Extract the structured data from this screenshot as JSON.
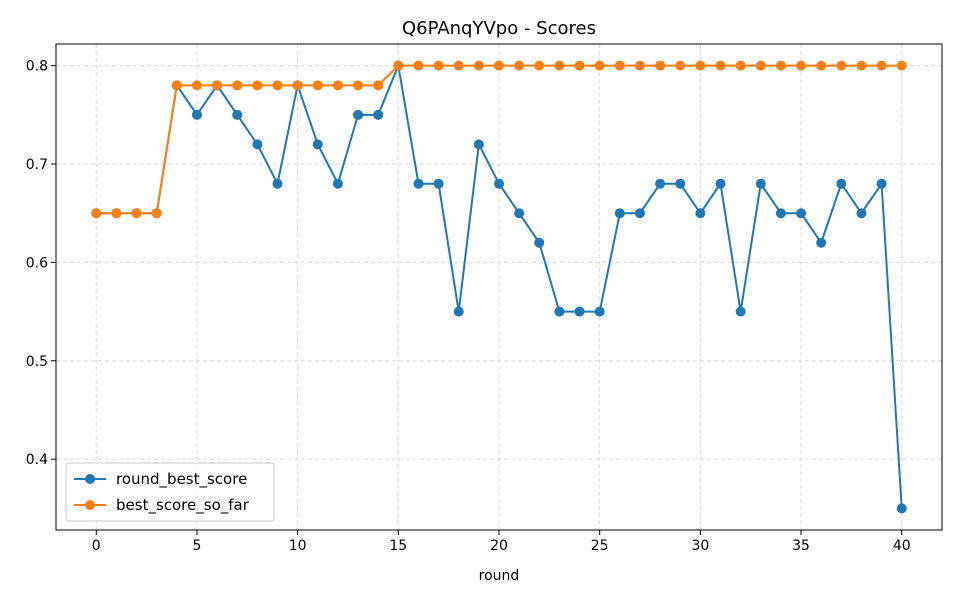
{
  "chart_data": {
    "type": "line",
    "title": "Q6PAnqYVpo - Scores",
    "xlabel": "round",
    "ylabel": "",
    "xlim": [
      -2,
      42
    ],
    "ylim": [
      0.328,
      0.822
    ],
    "xticks": [
      0,
      5,
      10,
      15,
      20,
      25,
      30,
      35,
      40
    ],
    "yticks": [
      0.4,
      0.5,
      0.6,
      0.7,
      0.8
    ],
    "grid": true,
    "legend": "lower-left",
    "x": [
      0,
      1,
      2,
      3,
      4,
      5,
      6,
      7,
      8,
      9,
      10,
      11,
      12,
      13,
      14,
      15,
      16,
      17,
      18,
      19,
      20,
      21,
      22,
      23,
      24,
      25,
      26,
      27,
      28,
      29,
      30,
      31,
      32,
      33,
      34,
      35,
      36,
      37,
      38,
      39,
      40
    ],
    "series": [
      {
        "name": "round_best_score",
        "color": "#1f77b4",
        "values": [
          0.65,
          0.65,
          0.65,
          0.65,
          0.78,
          0.75,
          0.78,
          0.75,
          0.72,
          0.68,
          0.78,
          0.72,
          0.68,
          0.75,
          0.75,
          0.8,
          0.68,
          0.68,
          0.55,
          0.72,
          0.68,
          0.65,
          0.62,
          0.55,
          0.55,
          0.55,
          0.65,
          0.65,
          0.68,
          0.68,
          0.65,
          0.68,
          0.55,
          0.68,
          0.65,
          0.65,
          0.62,
          0.68,
          0.65,
          0.68,
          0.35
        ]
      },
      {
        "name": "best_score_so_far",
        "color": "#ff7f0e",
        "values": [
          0.65,
          0.65,
          0.65,
          0.65,
          0.78,
          0.78,
          0.78,
          0.78,
          0.78,
          0.78,
          0.78,
          0.78,
          0.78,
          0.78,
          0.78,
          0.8,
          0.8,
          0.8,
          0.8,
          0.8,
          0.8,
          0.8,
          0.8,
          0.8,
          0.8,
          0.8,
          0.8,
          0.8,
          0.8,
          0.8,
          0.8,
          0.8,
          0.8,
          0.8,
          0.8,
          0.8,
          0.8,
          0.8,
          0.8,
          0.8,
          0.8
        ]
      }
    ]
  }
}
